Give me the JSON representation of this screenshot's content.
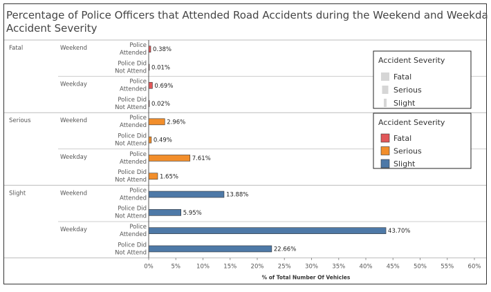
{
  "chart_data": {
    "type": "bar",
    "orientation": "horizontal",
    "title_lines": [
      "Percentage of Police Officers that Attended Road Accidents during the Weekend and Weekdays sorted by",
      "Accident Severity"
    ],
    "xlabel": "% of Total Number Of Vehicles",
    "xlim": [
      0,
      60
    ],
    "xticks": [
      "0%",
      "5%",
      "10%",
      "15%",
      "20%",
      "25%",
      "30%",
      "35%",
      "40%",
      "45%",
      "50%",
      "55%",
      "60%"
    ],
    "grid": false,
    "groups": [
      {
        "severity": "Fatal",
        "color": "#e15759",
        "periods": [
          {
            "period": "Weekend",
            "rows": [
              {
                "label": [
                  "Police",
                  "Attended"
                ],
                "value": 0.38,
                "value_label": "0.38%"
              },
              {
                "label": [
                  "Police Did",
                  "Not Attend"
                ],
                "value": 0.01,
                "value_label": "0.01%"
              }
            ]
          },
          {
            "period": "Weekday",
            "rows": [
              {
                "label": [
                  "Police",
                  "Attended"
                ],
                "value": 0.69,
                "value_label": "0.69%"
              },
              {
                "label": [
                  "Police Did",
                  "Not Attend"
                ],
                "value": 0.02,
                "value_label": "0.02%"
              }
            ]
          }
        ]
      },
      {
        "severity": "Serious",
        "color": "#f28e2b",
        "periods": [
          {
            "period": "Weekend",
            "rows": [
              {
                "label": [
                  "Police",
                  "Attended"
                ],
                "value": 2.96,
                "value_label": "2.96%"
              },
              {
                "label": [
                  "Police Did",
                  "Not Attend"
                ],
                "value": 0.49,
                "value_label": "0.49%"
              }
            ]
          },
          {
            "period": "Weekday",
            "rows": [
              {
                "label": [
                  "Police",
                  "Attended"
                ],
                "value": 7.61,
                "value_label": "7.61%"
              },
              {
                "label": [
                  "Police Did",
                  "Not Attend"
                ],
                "value": 1.65,
                "value_label": "1.65%"
              }
            ]
          }
        ]
      },
      {
        "severity": "Slight",
        "color": "#4e79a7",
        "periods": [
          {
            "period": "Weekend",
            "rows": [
              {
                "label": [
                  "Police",
                  "Attended"
                ],
                "value": 13.88,
                "value_label": "13.88%"
              },
              {
                "label": [
                  "Police Did",
                  "Not Attend"
                ],
                "value": 5.95,
                "value_label": "5.95%"
              }
            ]
          },
          {
            "period": "Weekday",
            "rows": [
              {
                "label": [
                  "Police",
                  "Attended"
                ],
                "value": 43.7,
                "value_label": "43.70%"
              },
              {
                "label": [
                  "Police Did",
                  "Not Attend"
                ],
                "value": 22.66,
                "value_label": "22.66%"
              }
            ]
          }
        ]
      }
    ],
    "legends": [
      {
        "title": "Accident Severity",
        "kind": "size",
        "items": [
          "Fatal",
          "Serious",
          "Slight"
        ]
      },
      {
        "title": "Accident Severity",
        "kind": "color",
        "items": [
          {
            "label": "Fatal",
            "color": "#e15759"
          },
          {
            "label": "Serious",
            "color": "#f28e2b"
          },
          {
            "label": "Slight",
            "color": "#4e79a7"
          }
        ]
      }
    ],
    "legend_placement": "right"
  }
}
